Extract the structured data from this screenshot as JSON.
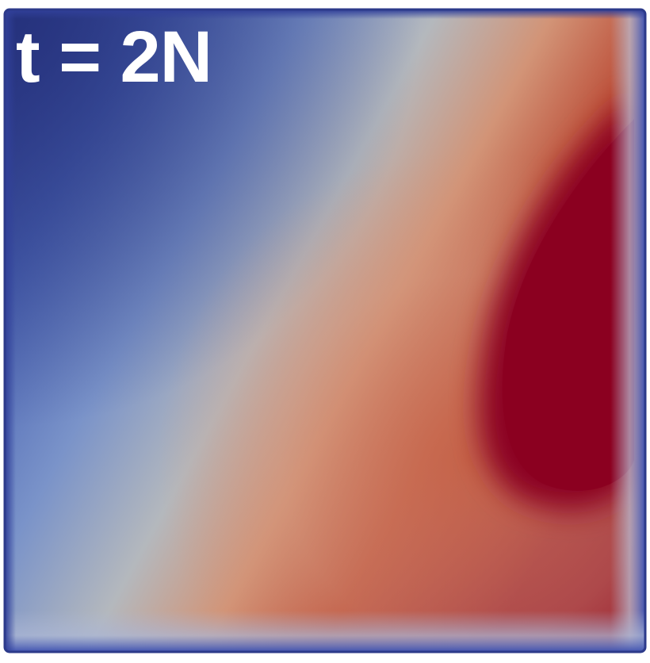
{
  "figure": {
    "time_label": "t = 2N",
    "colormap": {
      "low": "#3b4cc0",
      "mid": "#b5b6b8",
      "high": "#8b0020"
    }
  }
}
